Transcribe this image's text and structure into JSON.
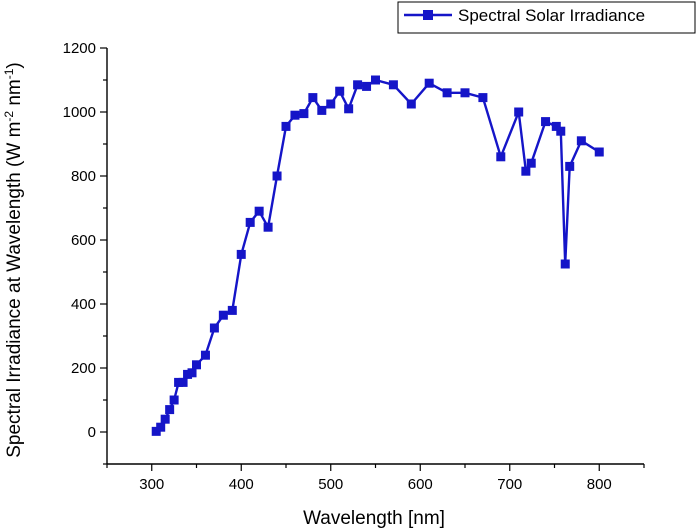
{
  "chart_data": {
    "type": "line",
    "title": "",
    "xlabel": "Wavelength [nm]",
    "ylabel": {
      "prefix": "Spectral Irradiance at Wavelength (W m",
      "exp1": "-2",
      "mid": " nm",
      "exp2": "-1",
      "suffix": ")"
    },
    "xlim": [
      250,
      850
    ],
    "ylim": [
      -100,
      1200
    ],
    "xticks": [
      300,
      400,
      500,
      600,
      700,
      800
    ],
    "yticks": [
      0,
      200,
      400,
      600,
      800,
      1000,
      1200
    ],
    "grid": false,
    "legend_position": "top-right",
    "series": [
      {
        "name": "Spectral Solar Irradiance",
        "color": "#1515c8",
        "marker": "square",
        "x": [
          305,
          310,
          315,
          320,
          325,
          330,
          335,
          340,
          345,
          350,
          360,
          370,
          380,
          390,
          400,
          410,
          420,
          430,
          440,
          450,
          460,
          470,
          480,
          490,
          500,
          510,
          520,
          530,
          540,
          550,
          570,
          590,
          610,
          630,
          650,
          670,
          690,
          710,
          718,
          724,
          740,
          752,
          757,
          762,
          767,
          780,
          800
        ],
        "y": [
          2,
          15,
          40,
          70,
          100,
          155,
          155,
          180,
          185,
          210,
          240,
          325,
          365,
          380,
          555,
          655,
          690,
          640,
          800,
          955,
          990,
          995,
          1045,
          1005,
          1025,
          1065,
          1010,
          1085,
          1080,
          1100,
          1085,
          1025,
          1090,
          1060,
          1060,
          1045,
          860,
          1000,
          815,
          840,
          970,
          955,
          940,
          525,
          830,
          910,
          875
        ]
      }
    ]
  }
}
